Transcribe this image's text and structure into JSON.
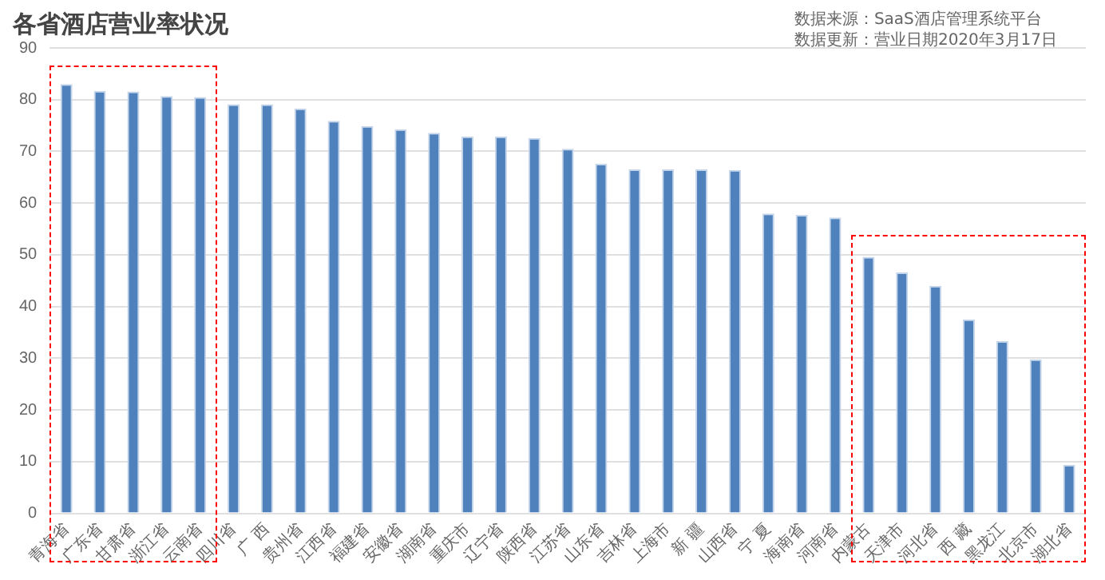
{
  "chart_data": {
    "type": "bar",
    "title": "各省酒店营业率状况",
    "annotations": [
      "数据来源：SaaS酒店管理系统平台",
      "数据更新：营业日期2020年3月17日"
    ],
    "categories": [
      "青海省",
      "广东省",
      "甘肃省",
      "浙江省",
      "云南省",
      "四川省",
      "广 西",
      "贵州省",
      "江西省",
      "福建省",
      "安徽省",
      "湖南省",
      "重庆市",
      "辽宁省",
      "陕西省",
      "江苏省",
      "山东省",
      "吉林省",
      "上海市",
      "新 疆",
      "山西省",
      "宁 夏",
      "海南省",
      "河南省",
      "内蒙古",
      "天津市",
      "河北省",
      "西 藏",
      "黑龙江",
      "北京市",
      "湖北省"
    ],
    "values": [
      83.0,
      81.7,
      81.6,
      80.7,
      80.5,
      79.1,
      79.1,
      78.3,
      75.9,
      74.9,
      74.3,
      73.6,
      72.9,
      72.9,
      72.6,
      70.5,
      67.6,
      66.5,
      66.5,
      66.5,
      66.4,
      58.0,
      57.7,
      57.2,
      49.6,
      46.6,
      44.0,
      37.5,
      33.3,
      29.8,
      9.4
    ],
    "color": "#4f81bd",
    "ylim": [
      0,
      90
    ],
    "yticks": [
      0,
      10,
      20,
      30,
      40,
      50,
      60,
      70,
      80,
      90
    ],
    "grid": "y",
    "legend": false
  }
}
